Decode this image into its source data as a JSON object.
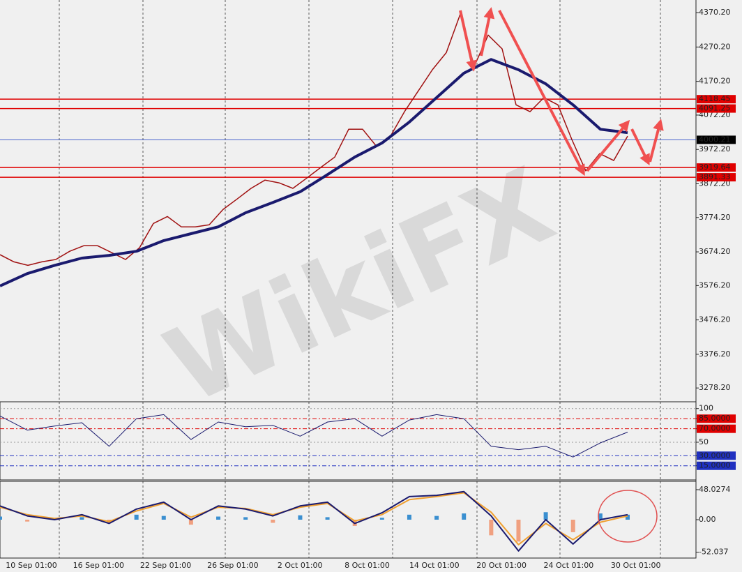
{
  "chart_data": [
    {
      "type": "line",
      "watermark": "WikiFX",
      "x_labels": [
        "10 Sep 01:00",
        "16 Sep 01:00",
        "22 Sep 01:00",
        "26 Sep 01:00",
        "2 Oct 01:00",
        "8 Oct 01:00",
        "14 Oct 01:00",
        "20 Oct 01:00",
        "24 Oct 01:00",
        "30 Oct 01:00"
      ],
      "ylim": [
        3240,
        4407
      ],
      "yticks": [
        {
          "value": 4370.2,
          "label": "4370.20"
        },
        {
          "value": 4270.2,
          "label": "4270.20"
        },
        {
          "value": 4170.2,
          "label": "4170.20"
        },
        {
          "value": 4072.2,
          "label": "4072.20"
        },
        {
          "value": 3972.2,
          "label": "3972.20"
        },
        {
          "value": 3872.2,
          "label": "3872.20"
        },
        {
          "value": 3774.2,
          "label": "3774.20"
        },
        {
          "value": 3674.2,
          "label": "3674.20"
        },
        {
          "value": 3576.2,
          "label": "3576.20"
        },
        {
          "value": 3476.2,
          "label": "3476.20"
        },
        {
          "value": 3376.2,
          "label": "3376.20"
        },
        {
          "value": 3278.2,
          "label": "3278.20"
        }
      ],
      "levels": [
        {
          "value": 4118.45,
          "color": "#e00000"
        },
        {
          "value": 4091.25,
          "color": "#e00000"
        },
        {
          "value": 4000.21,
          "color": "#3050c8",
          "box": "#000000"
        },
        {
          "value": 3919.64,
          "color": "#e00000"
        },
        {
          "value": 3891.33,
          "color": "#e00000"
        }
      ],
      "series": [
        {
          "color": "#a01010",
          "width": 1.5,
          "values": [
            3666,
            3645,
            3635,
            3645,
            3652,
            3676,
            3692,
            3692,
            3672,
            3652,
            3686,
            3757,
            3777,
            3747,
            3747,
            3753,
            3798,
            3828,
            3859,
            3883,
            3875,
            3859,
            3889,
            3920,
            3950,
            4031,
            4031,
            3981,
            4011,
            4082,
            4143,
            4204,
            4254,
            4366,
            4214,
            4305,
            4265,
            4102,
            4082,
            4123,
            4102,
            4001,
            3910,
            3960,
            3940,
            4011
          ]
        },
        {
          "color": "#1a1a6e",
          "width": 4,
          "values": [
            3575,
            3611,
            3635,
            3656,
            3664,
            3676,
            3707,
            3727,
            3747,
            3788,
            3818,
            3849,
            3899,
            3950,
            3991,
            4052,
            4123,
            4194,
            4234,
            4204,
            4163,
            4102,
            4031,
            4021
          ]
        }
      ]
    },
    {
      "type": "line",
      "ylim": [
        -6,
        108
      ],
      "yticks": [
        100,
        {
          "value": 85,
          "label": "85.0000"
        },
        {
          "value": 70,
          "label": "70.0000"
        },
        50,
        {
          "value": 30,
          "label": "30.0000"
        },
        {
          "value": 15,
          "label": "15.0000"
        }
      ],
      "tick_colors": [
        "#999999",
        "#e00000",
        "#e00000",
        "#999999",
        "#2030c0",
        "#2030c0"
      ],
      "series": [
        {
          "color": "#1a1a6e",
          "width": 1,
          "values": [
            89,
            68,
            74,
            79,
            44,
            85,
            91,
            54,
            80,
            73,
            75,
            59,
            80,
            85,
            59,
            83,
            91,
            85,
            44,
            39,
            44,
            28,
            49,
            65
          ]
        }
      ]
    },
    {
      "type": "macd",
      "ylim": [
        -61.4,
        61.4
      ],
      "yticks": [
        48.0274,
        {
          "value": 0,
          "label": "0.00"
        },
        -52.037
      ],
      "histogram": [
        5,
        -3,
        2,
        4,
        -6,
        8,
        6,
        -8,
        5,
        4,
        -5,
        7,
        4,
        -10,
        3,
        8,
        6,
        10,
        -25,
        -35,
        12,
        -20,
        10,
        8
      ],
      "hist_colors": [
        "#3a8fd0",
        "#f0a080"
      ],
      "series": [
        {
          "color": "#f0a030",
          "width": 2,
          "values": [
            20,
            8,
            2,
            6,
            -3,
            14,
            26,
            4,
            20,
            18,
            8,
            20,
            26,
            -2,
            8,
            32,
            37,
            43,
            12,
            -40,
            -6,
            -32,
            -4,
            6
          ]
        },
        {
          "color": "#1a1a6e",
          "width": 2,
          "values": [
            22,
            6,
            0,
            8,
            -6,
            17,
            28,
            0,
            22,
            17,
            6,
            22,
            28,
            -6,
            11,
            37,
            39,
            45,
            6,
            -50,
            0,
            -39,
            0,
            8
          ]
        }
      ]
    }
  ]
}
